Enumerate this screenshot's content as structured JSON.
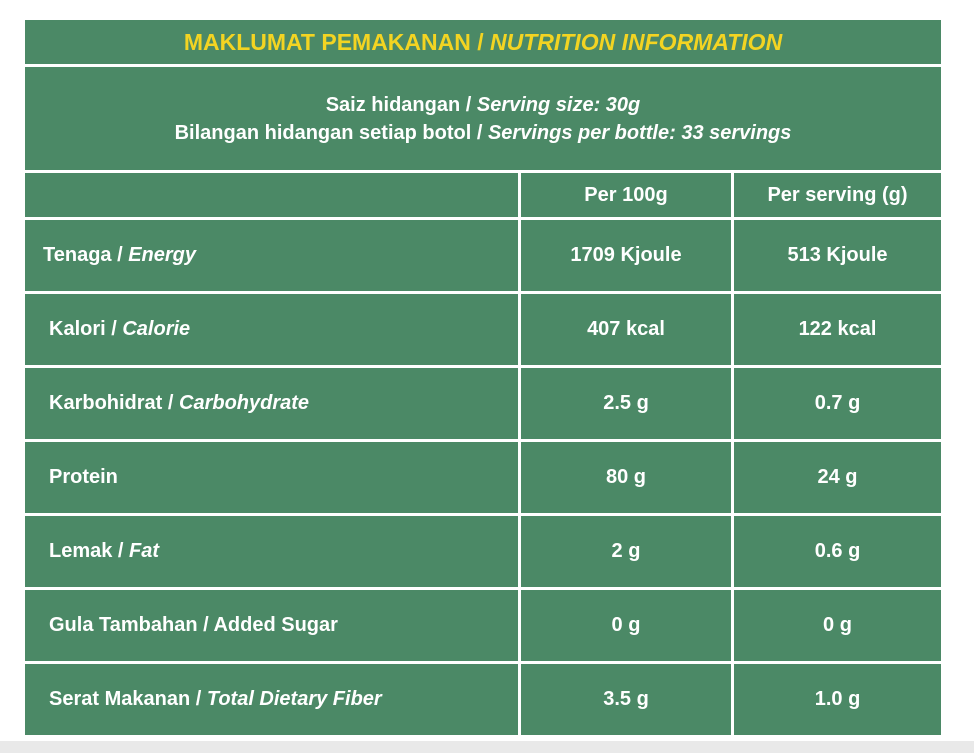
{
  "header": {
    "title_malay": "MAKLUMAT PEMAKANAN / ",
    "title_english": "NUTRITION INFORMATION"
  },
  "serving": {
    "size_malay": "Saiz hidangan / ",
    "size_english": "Serving size: 30g",
    "count_malay": "Bilangan hidangan setiap botol / ",
    "count_english": "Servings per bottle: 33 servings"
  },
  "table": {
    "columns": [
      "Per 100g",
      "Per serving (g)"
    ],
    "rows": [
      {
        "malay": "Tenaga / ",
        "english": "Energy",
        "per100": "1709 Kjoule",
        "serving": "513 Kjoule"
      },
      {
        "malay": "Kalori / ",
        "english": "Calorie",
        "per100": "407 kcal",
        "serving": "122 kcal"
      },
      {
        "malay": "Karbohidrat / ",
        "english": "Carbohydrate",
        "per100": "2.5 g",
        "serving": "0.7 g"
      },
      {
        "malay": "Protein",
        "per100": "80 g",
        "serving": "24 g"
      },
      {
        "malay": "Lemak / ",
        "english": "Fat",
        "per100": "2 g",
        "serving": "0.6 g"
      },
      {
        "malay": "Gula Tambahan / Added Sugar",
        "per100": "0 g",
        "serving": "0 g"
      },
      {
        "malay": "Serat Makanan / ",
        "english": "Total Dietary Fiber",
        "per100": "3.5 g",
        "serving": "1.0 g"
      }
    ]
  }
}
